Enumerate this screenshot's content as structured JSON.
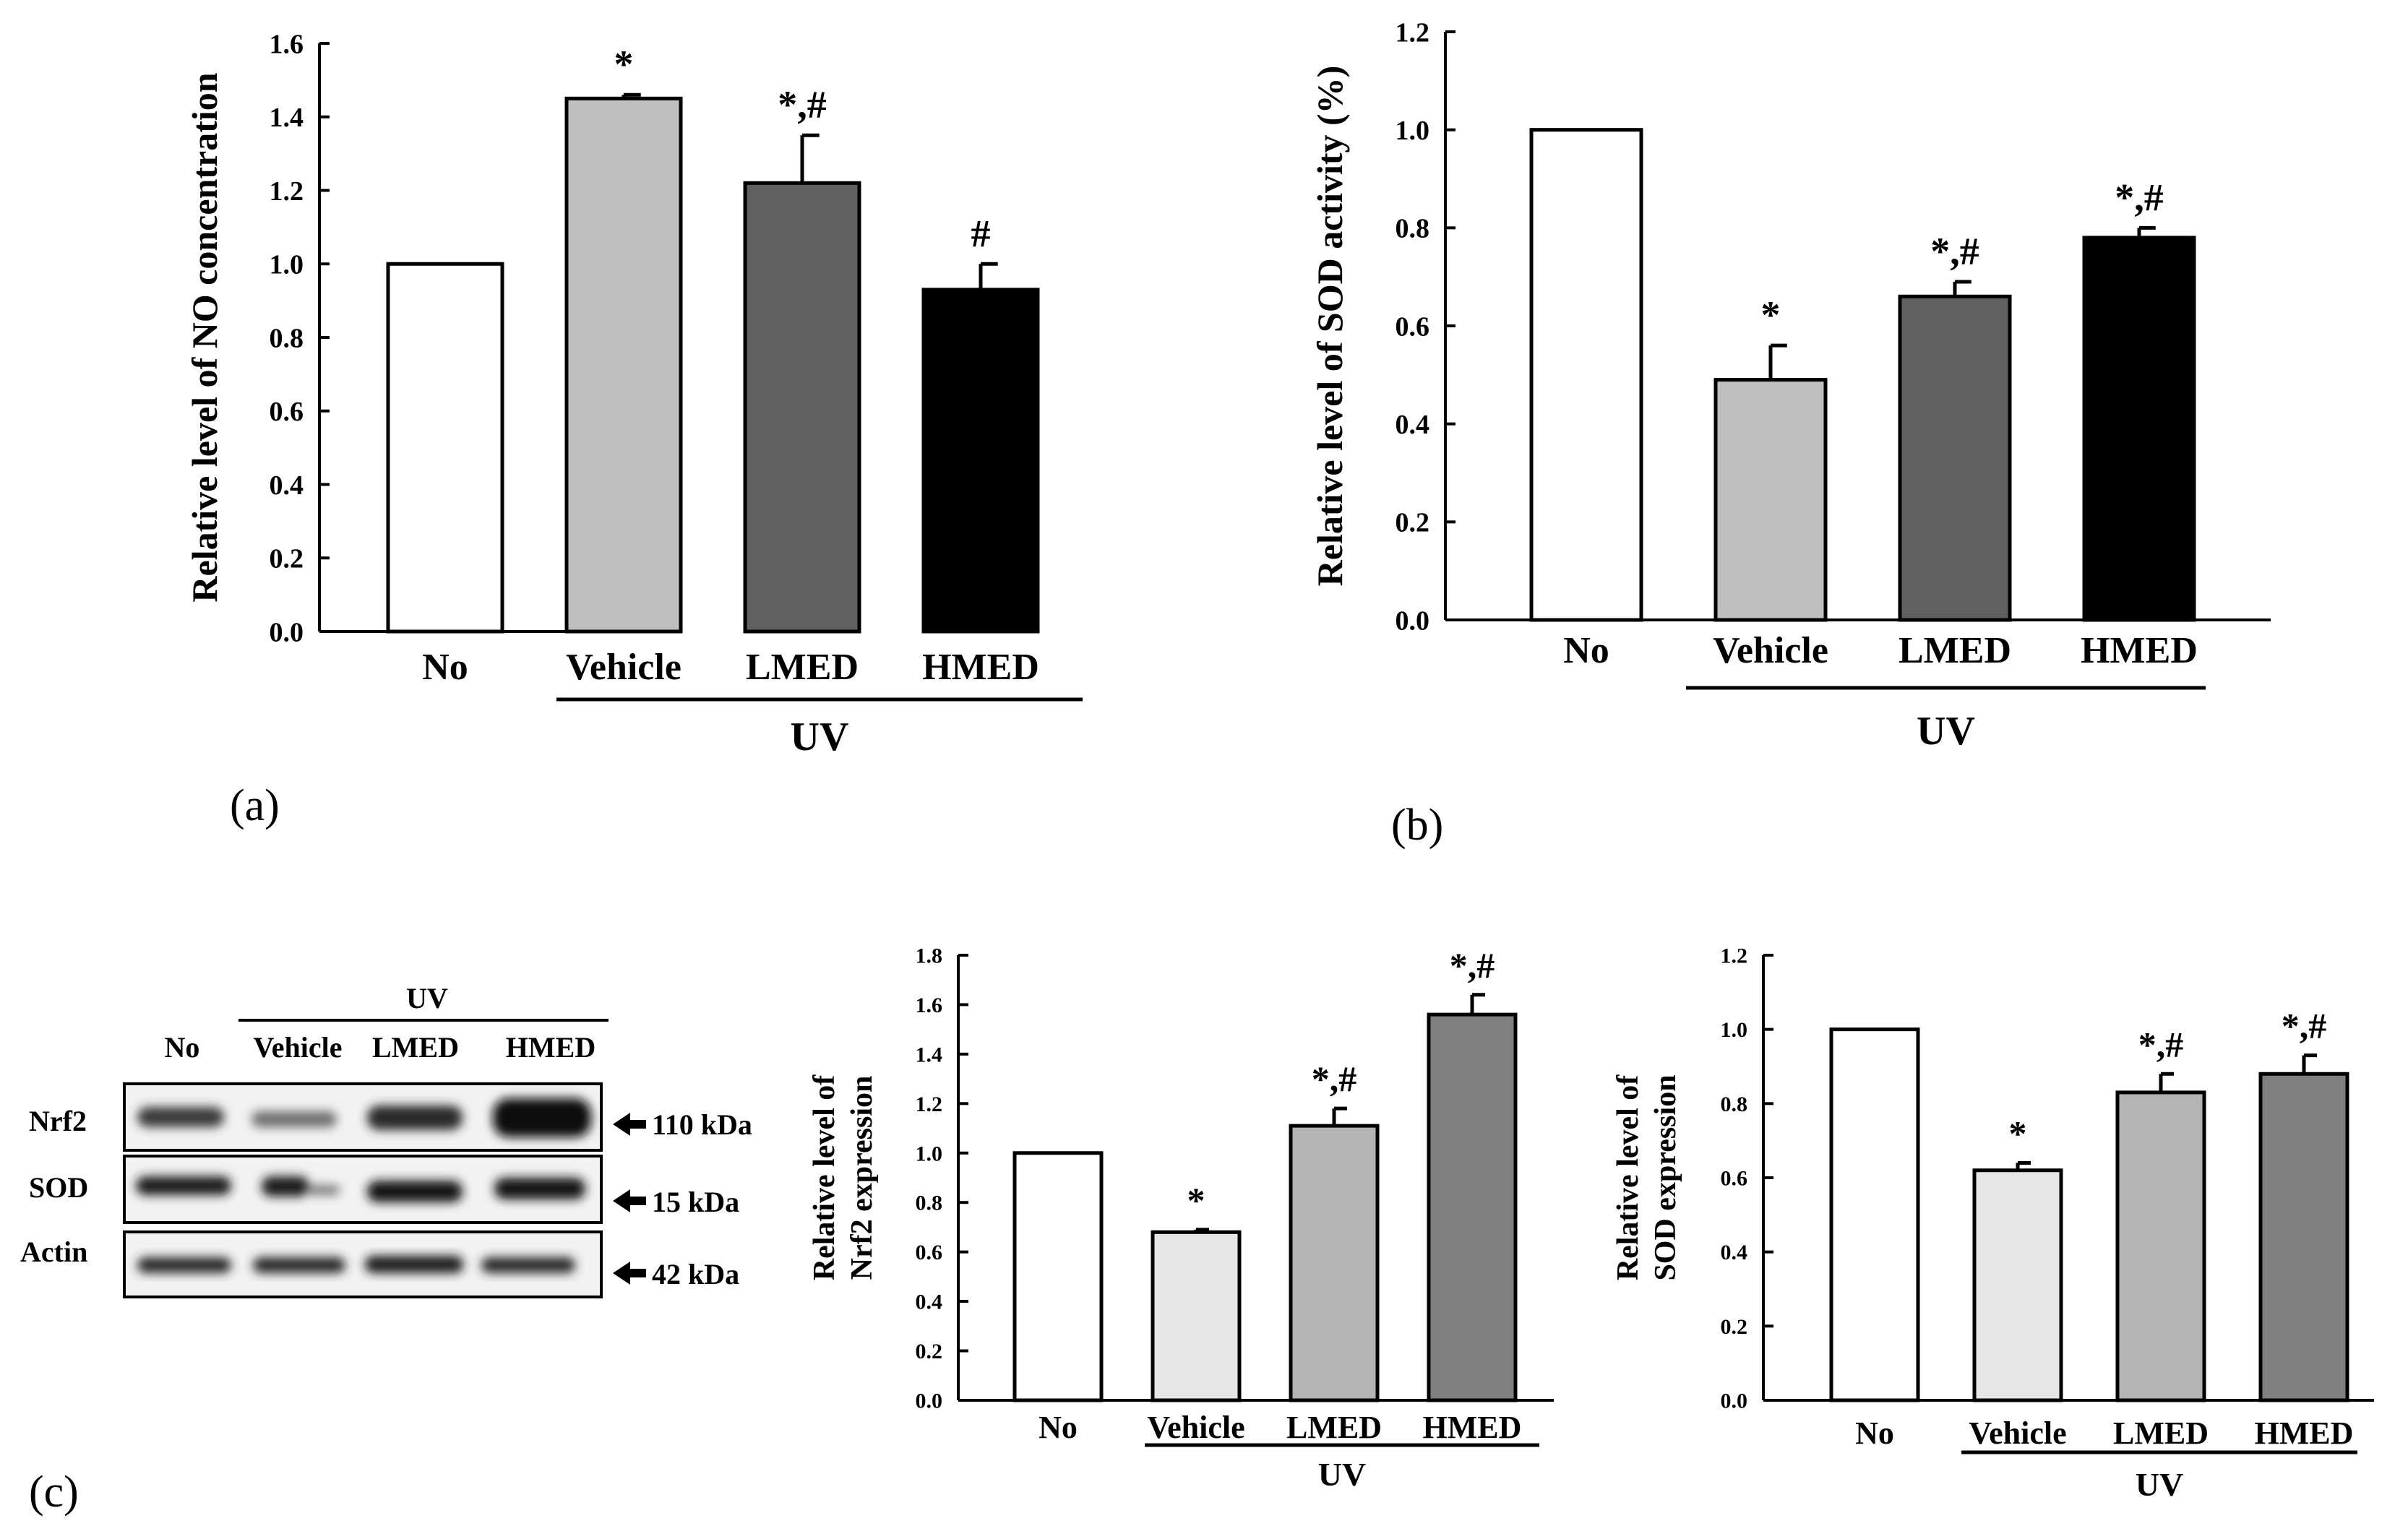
{
  "panel_labels": {
    "a": "(a)",
    "b": "(b)",
    "c": "(c)"
  },
  "colors": {
    "no": "#ffffff",
    "vehicle": "#bfbfbf",
    "lmed": "#606060",
    "hmed": "#000000",
    "c_vehicle": "#e6e6e6",
    "c_lmed": "#b4b4b4",
    "c_hmed": "#808080"
  },
  "chart_data": [
    {
      "id": "a",
      "type": "bar",
      "title": "",
      "ylabel": "Relative level of NO concentration",
      "categories": [
        "No",
        "Vehicle",
        "LMED",
        "HMED"
      ],
      "values": [
        1.0,
        1.45,
        1.22,
        0.93
      ],
      "errors": [
        0.0,
        0.01,
        0.13,
        0.07
      ],
      "significance": [
        "",
        "*",
        "*,#",
        "#"
      ],
      "ylim": [
        0,
        1.6
      ],
      "yticks": [
        "0.0",
        "0.2",
        "0.4",
        "0.6",
        "0.8",
        "1.0",
        "1.2",
        "1.4",
        "1.6"
      ],
      "group_label": "UV"
    },
    {
      "id": "b",
      "type": "bar",
      "title": "",
      "ylabel": "Relative level of SOD activity (%)",
      "categories": [
        "No",
        "Vehicle",
        "LMED",
        "HMED"
      ],
      "values": [
        1.0,
        0.49,
        0.66,
        0.78
      ],
      "errors": [
        0.0,
        0.07,
        0.03,
        0.02
      ],
      "significance": [
        "",
        "*",
        "*,#",
        "*,#"
      ],
      "ylim": [
        0,
        1.2
      ],
      "yticks": [
        "0.0",
        "0.2",
        "0.4",
        "0.6",
        "0.8",
        "1.0",
        "1.2"
      ],
      "group_label": "UV"
    },
    {
      "id": "c_nrf2",
      "type": "bar",
      "title": "",
      "ylabel": "Relative level of",
      "ylabel2": "Nrf2 expression",
      "categories": [
        "No",
        "Vehicle",
        "LMED",
        "HMED"
      ],
      "values": [
        1.0,
        0.68,
        1.11,
        1.56
      ],
      "errors": [
        0.0,
        0.01,
        0.07,
        0.08
      ],
      "significance": [
        "",
        "*",
        "*,#",
        "*,#"
      ],
      "ylim": [
        0,
        1.8
      ],
      "yticks": [
        "0.0",
        "0.2",
        "0.4",
        "0.6",
        "0.8",
        "1.0",
        "1.2",
        "1.4",
        "1.6",
        "1.8"
      ],
      "group_label": "UV"
    },
    {
      "id": "c_sod",
      "type": "bar",
      "title": "",
      "ylabel": "Relative level of",
      "ylabel2": "SOD expression",
      "categories": [
        "No",
        "Vehicle",
        "LMED",
        "HMED"
      ],
      "values": [
        1.0,
        0.62,
        0.83,
        0.88
      ],
      "errors": [
        0.0,
        0.02,
        0.05,
        0.05
      ],
      "significance": [
        "",
        "*",
        "*,#",
        "*,#"
      ],
      "ylim": [
        0,
        1.2
      ],
      "yticks": [
        "0.0",
        "0.2",
        "0.4",
        "0.6",
        "0.8",
        "1.0",
        "1.2"
      ],
      "group_label": "UV"
    }
  ],
  "blot": {
    "group_label": "UV",
    "lanes": [
      "No",
      "Vehicle",
      "LMED",
      "HMED"
    ],
    "rows": [
      {
        "name": "Nrf2",
        "size": "110 kDa"
      },
      {
        "name": "SOD",
        "size": "15 kDa"
      },
      {
        "name": "Actin",
        "size": "42 kDa"
      }
    ]
  }
}
